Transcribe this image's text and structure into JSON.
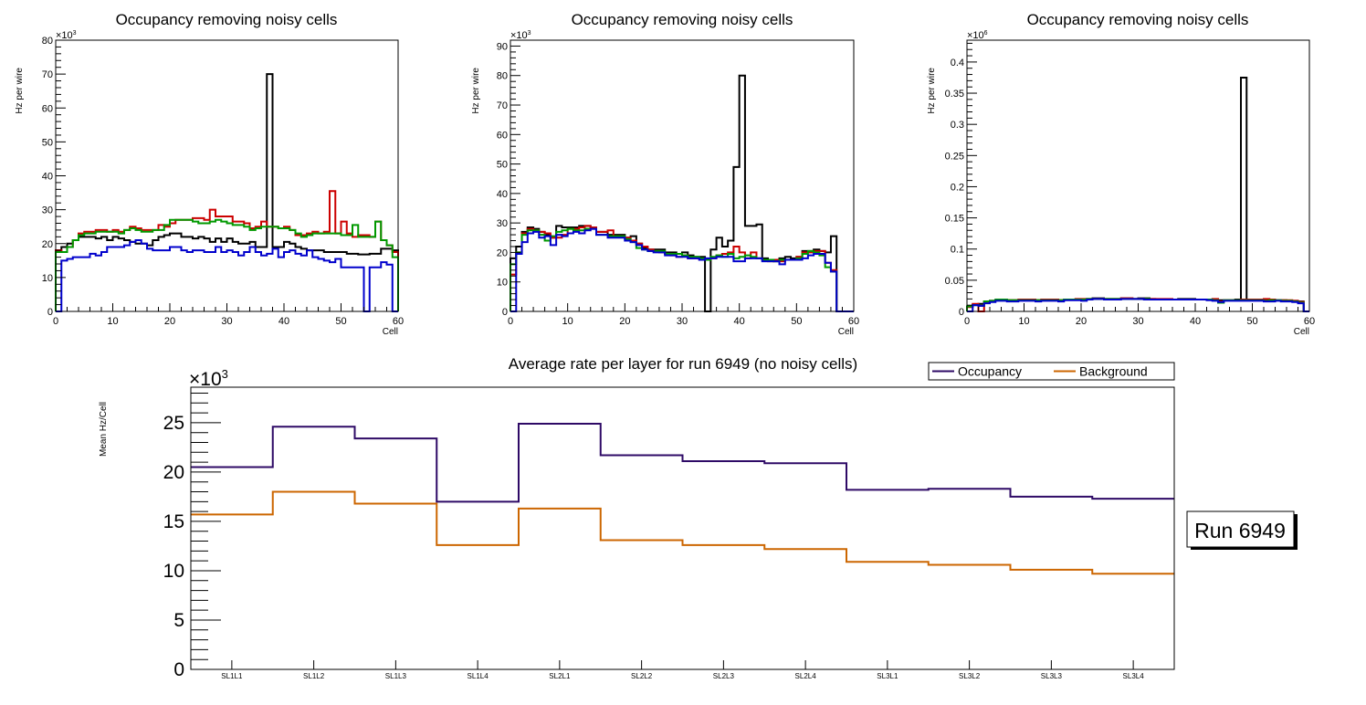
{
  "chart_data": [
    {
      "type": "line",
      "subtype": "histogram-step",
      "title": "Occupancy removing noisy cells",
      "xlabel": "Cell",
      "ylabel": "Hz per wire",
      "y_multiplier_label": "×10",
      "y_multiplier_exp": "3",
      "xlim": [
        0,
        60
      ],
      "ylim": [
        0,
        80
      ],
      "x_ticks": [
        "0",
        "10",
        "20",
        "30",
        "40",
        "50",
        "60"
      ],
      "y_ticks": [
        "0",
        "10",
        "20",
        "30",
        "40",
        "50",
        "60",
        "70",
        "80"
      ],
      "y_tick_values": [
        0,
        10,
        20,
        30,
        40,
        50,
        60,
        70,
        80
      ],
      "series": [
        {
          "name": "layer-black",
          "color": "#000000",
          "values": [
            18,
            19,
            20,
            21,
            22,
            22,
            22,
            21.5,
            22,
            21,
            22,
            21.5,
            21,
            20.5,
            20,
            20,
            19.5,
            21,
            22,
            22.5,
            23,
            23,
            22,
            22,
            21.5,
            22,
            21.5,
            20.5,
            21.5,
            20.5,
            21.5,
            20.5,
            20,
            20,
            20.5,
            19,
            19,
            70,
            19,
            19,
            20.5,
            20,
            19,
            18.5,
            18,
            18,
            18,
            17.5,
            17.5,
            17.5,
            17.5,
            17,
            17,
            16.8,
            16.8,
            17,
            17,
            18.5,
            18.5,
            18
          ]
        },
        {
          "name": "layer-red",
          "color": "#cc0000",
          "values": [
            18,
            17.5,
            19,
            21,
            23,
            23.5,
            23.5,
            24,
            24,
            23.5,
            24,
            23.5,
            24,
            25,
            24.5,
            24,
            24,
            24,
            25.5,
            25,
            26,
            27,
            27,
            27,
            27.5,
            27.5,
            27,
            30,
            28,
            28,
            28,
            26.5,
            26.5,
            26,
            24.5,
            25,
            26.5,
            25,
            25,
            24.5,
            25,
            24,
            22.5,
            22.5,
            23,
            23.5,
            23,
            23.5,
            35.5,
            23,
            26.5,
            23,
            22,
            22.5,
            22.5,
            22,
            26.5,
            21,
            19.5,
            17.5
          ]
        },
        {
          "name": "layer-green",
          "color": "#009900",
          "values": [
            17.5,
            17.5,
            19,
            21,
            22.5,
            23,
            23,
            23.5,
            23.5,
            23.5,
            23.5,
            23,
            24,
            24.5,
            24,
            23.5,
            23.5,
            24,
            24,
            25.5,
            27,
            27,
            27,
            27,
            26.5,
            26,
            26,
            26.5,
            27,
            26.5,
            26,
            25.5,
            25.5,
            25,
            24,
            24.5,
            25,
            25,
            25,
            24.5,
            24.5,
            24,
            23,
            22,
            22.5,
            23,
            23,
            23,
            23,
            23,
            22.5,
            22.5,
            25.5,
            22,
            22,
            22,
            26.5,
            21,
            19.5,
            16
          ]
        },
        {
          "name": "layer-blue",
          "color": "#0000cc",
          "values": [
            0,
            15,
            15.5,
            16,
            16,
            16,
            17,
            16.5,
            17.5,
            19,
            19,
            19,
            19.5,
            20.5,
            21,
            20,
            18.5,
            18,
            18,
            18,
            19,
            19,
            18,
            17.5,
            18,
            18,
            17.5,
            17.5,
            19,
            17.5,
            18,
            17.5,
            16.5,
            17.5,
            19,
            17.5,
            16.5,
            17,
            18.5,
            16,
            17.5,
            18,
            17,
            16.5,
            18,
            16,
            15.5,
            15,
            14.5,
            15.5,
            13,
            13,
            13,
            13,
            0,
            13,
            13,
            14.5,
            13.8,
            0
          ]
        }
      ]
    },
    {
      "type": "line",
      "subtype": "histogram-step",
      "title": "Occupancy removing noisy cells",
      "xlabel": "Cell",
      "ylabel": "Hz per wire",
      "y_multiplier_label": "×10",
      "y_multiplier_exp": "3",
      "xlim": [
        0,
        60
      ],
      "ylim": [
        0,
        92
      ],
      "x_ticks": [
        "0",
        "10",
        "20",
        "30",
        "40",
        "50",
        "60"
      ],
      "y_ticks": [
        "0",
        "10",
        "20",
        "30",
        "40",
        "50",
        "60",
        "70",
        "80",
        "90"
      ],
      "y_tick_values": [
        0,
        10,
        20,
        30,
        40,
        50,
        60,
        70,
        80,
        90
      ],
      "series": [
        {
          "name": "layer-black",
          "color": "#000000",
          "values": [
            18,
            22,
            27,
            28.5,
            28,
            27,
            26,
            25,
            29,
            28.5,
            28.5,
            28.5,
            29,
            29,
            28.5,
            27,
            27,
            26,
            26,
            26,
            25,
            25.5,
            23,
            21.5,
            21,
            21,
            21,
            20,
            20,
            19.5,
            20,
            19,
            18.5,
            18.5,
            0,
            21,
            25,
            22,
            24,
            49,
            80,
            29,
            29,
            29.5,
            18,
            17.5,
            17,
            18,
            18.5,
            18,
            18.5,
            20.5,
            20.5,
            21,
            20.5,
            20,
            25.5,
            0,
            0,
            0
          ]
        },
        {
          "name": "layer-red",
          "color": "#cc0000",
          "values": [
            12.5,
            20,
            26.5,
            28,
            27.5,
            27,
            26.5,
            25,
            25,
            26,
            28,
            28,
            28.5,
            29,
            28.5,
            27,
            27,
            27.5,
            25.5,
            25.5,
            25,
            24,
            23,
            22,
            21,
            20.5,
            20,
            19.5,
            19,
            18.5,
            19,
            18,
            18,
            17.5,
            17.5,
            18,
            19,
            19.5,
            20,
            22,
            20,
            18,
            20,
            18,
            17.5,
            17,
            17.5,
            17,
            17.5,
            17.5,
            18.5,
            20,
            20,
            20.5,
            20.5,
            16.5,
            14,
            0,
            0,
            0
          ]
        },
        {
          "name": "layer-green",
          "color": "#009900",
          "values": [
            16,
            20,
            26,
            27.5,
            27.5,
            26,
            24,
            25.5,
            27,
            27.5,
            28,
            27.5,
            27.5,
            28,
            28,
            26,
            26,
            25.5,
            25.5,
            25.5,
            24.5,
            23.5,
            21.5,
            21,
            20.5,
            20.5,
            20.5,
            19.5,
            19.5,
            19.5,
            19,
            18.5,
            18.5,
            18,
            17.5,
            18.5,
            19,
            18.5,
            19.5,
            18,
            18.5,
            19,
            18.5,
            18,
            17.5,
            17.5,
            17,
            17.5,
            17.5,
            17.5,
            18,
            19.5,
            20.5,
            20,
            19,
            15,
            13.5,
            0,
            0,
            0
          ]
        },
        {
          "name": "layer-blue",
          "color": "#0000cc",
          "values": [
            0,
            19.5,
            23.5,
            26.5,
            27,
            25,
            25.5,
            22.5,
            26,
            25.5,
            26.5,
            27,
            26.5,
            27.5,
            28,
            26,
            26,
            25,
            25,
            25,
            24,
            23.5,
            22.5,
            21,
            20.5,
            20,
            20,
            19,
            19,
            18.5,
            18.5,
            18,
            18,
            17.5,
            18,
            18,
            18.5,
            18.5,
            18.5,
            17,
            17,
            18,
            18,
            18,
            17,
            17,
            17,
            16,
            17.5,
            17.5,
            17.5,
            18,
            19,
            19.5,
            19.5,
            16.5,
            13.5,
            0,
            0,
            0
          ]
        }
      ]
    },
    {
      "type": "line",
      "subtype": "histogram-step",
      "title": "Occupancy removing noisy cells",
      "xlabel": "Cell",
      "ylabel": "Hz per wire",
      "y_multiplier_label": "×10",
      "y_multiplier_exp": "6",
      "xlim": [
        0,
        60
      ],
      "ylim": [
        0,
        0.435
      ],
      "x_ticks": [
        "0",
        "10",
        "20",
        "30",
        "40",
        "50",
        "60"
      ],
      "y_ticks": [
        "0",
        "0.05",
        "0.1",
        "0.15",
        "0.2",
        "0.25",
        "0.3",
        "0.35",
        "0.4"
      ],
      "y_tick_values": [
        0,
        0.05,
        0.1,
        0.15,
        0.2,
        0.25,
        0.3,
        0.35,
        0.4
      ],
      "series": [
        {
          "name": "layer-black",
          "color": "#000000",
          "values": [
            0.008,
            0.01,
            0.012,
            0.016,
            0.017,
            0.018,
            0.019,
            0.018,
            0.018,
            0.018,
            0.018,
            0.018,
            0.018,
            0.018,
            0.018,
            0.018,
            0.018,
            0.019,
            0.019,
            0.019,
            0.019,
            0.02,
            0.021,
            0.021,
            0.02,
            0.02,
            0.02,
            0.021,
            0.021,
            0.02,
            0.021,
            0.021,
            0.02,
            0.019,
            0.019,
            0.019,
            0.019,
            0.02,
            0.02,
            0.02,
            0.019,
            0.019,
            0.019,
            0.018,
            0.018,
            0.018,
            0.018,
            0.019,
            0.375,
            0.018,
            0.018,
            0.018,
            0.018,
            0.018,
            0.018,
            0.018,
            0.017,
            0.017,
            0.016,
            0
          ]
        },
        {
          "name": "layer-red",
          "color": "#cc0000",
          "values": [
            0.007,
            0.012,
            0,
            0.015,
            0.017,
            0.018,
            0.018,
            0.018,
            0.018,
            0.019,
            0.019,
            0.019,
            0.018,
            0.019,
            0.019,
            0.019,
            0.018,
            0.019,
            0.019,
            0.02,
            0.02,
            0.02,
            0.02,
            0.02,
            0.02,
            0.02,
            0.02,
            0.021,
            0.021,
            0.02,
            0.02,
            0.02,
            0.02,
            0.02,
            0.02,
            0.02,
            0.019,
            0.019,
            0.019,
            0.019,
            0.019,
            0.019,
            0.019,
            0.02,
            0.016,
            0.018,
            0.018,
            0.018,
            0.019,
            0.019,
            0.019,
            0.019,
            0.02,
            0.019,
            0.018,
            0.018,
            0.018,
            0.017,
            0.015,
            0
          ]
        },
        {
          "name": "layer-green",
          "color": "#009900",
          "values": [
            0.008,
            0.01,
            0.009,
            0.016,
            0.017,
            0.019,
            0.019,
            0.018,
            0.018,
            0.018,
            0.018,
            0.018,
            0.018,
            0.018,
            0.018,
            0.018,
            0.018,
            0.019,
            0.019,
            0.019,
            0.019,
            0.02,
            0.02,
            0.02,
            0.02,
            0.02,
            0.02,
            0.02,
            0.02,
            0.02,
            0.02,
            0.02,
            0.019,
            0.019,
            0.019,
            0.019,
            0.019,
            0.019,
            0.019,
            0.019,
            0.019,
            0.019,
            0.019,
            0.018,
            0.014,
            0.018,
            0.018,
            0.018,
            0.018,
            0.018,
            0.018,
            0.018,
            0.017,
            0.018,
            0.018,
            0.017,
            0.017,
            0.016,
            0.014,
            0
          ]
        },
        {
          "name": "layer-blue",
          "color": "#0000cc",
          "values": [
            0,
            0.01,
            0.009,
            0.013,
            0.015,
            0.017,
            0.017,
            0.016,
            0.016,
            0.017,
            0.017,
            0.017,
            0.016,
            0.017,
            0.017,
            0.017,
            0.016,
            0.018,
            0.018,
            0.018,
            0.017,
            0.019,
            0.02,
            0.02,
            0.019,
            0.019,
            0.019,
            0.02,
            0.02,
            0.02,
            0.02,
            0.019,
            0.019,
            0.019,
            0.019,
            0.019,
            0.019,
            0.019,
            0.019,
            0.019,
            0.019,
            0.019,
            0.018,
            0.017,
            0.015,
            0.017,
            0.017,
            0.017,
            0.017,
            0.017,
            0.017,
            0.017,
            0.016,
            0.016,
            0.017,
            0.016,
            0.016,
            0.015,
            0.013,
            0
          ]
        }
      ]
    },
    {
      "type": "line",
      "subtype": "histogram-step",
      "title": "Average rate per layer for run 6949 (no noisy cells)",
      "xlabel": "",
      "ylabel": "Mean Hz/Cell",
      "y_multiplier_label": "×10",
      "y_multiplier_exp": "3",
      "ylim": [
        0,
        28.6
      ],
      "categories": [
        "SL1L1",
        "SL1L2",
        "SL1L3",
        "SL1L4",
        "SL2L1",
        "SL2L2",
        "SL2L3",
        "SL2L4",
        "SL3L1",
        "SL3L2",
        "SL3L3",
        "SL3L4"
      ],
      "y_ticks": [
        "0",
        "5",
        "10",
        "15",
        "20",
        "25"
      ],
      "y_tick_values": [
        0,
        5,
        10,
        15,
        20,
        25
      ],
      "legend_position": "top-right",
      "series": [
        {
          "name": "Occupancy",
          "color": "#2e0a66",
          "values": [
            20.5,
            24.6,
            23.4,
            17.0,
            24.9,
            21.7,
            21.1,
            20.9,
            18.2,
            18.3,
            17.5,
            17.3
          ]
        },
        {
          "name": "Background",
          "color": "#cc6600",
          "values": [
            15.7,
            18.0,
            16.8,
            12.6,
            16.3,
            13.1,
            12.6,
            12.2,
            10.9,
            10.6,
            10.1,
            9.7
          ]
        }
      ],
      "annotation": "Run 6949"
    }
  ]
}
